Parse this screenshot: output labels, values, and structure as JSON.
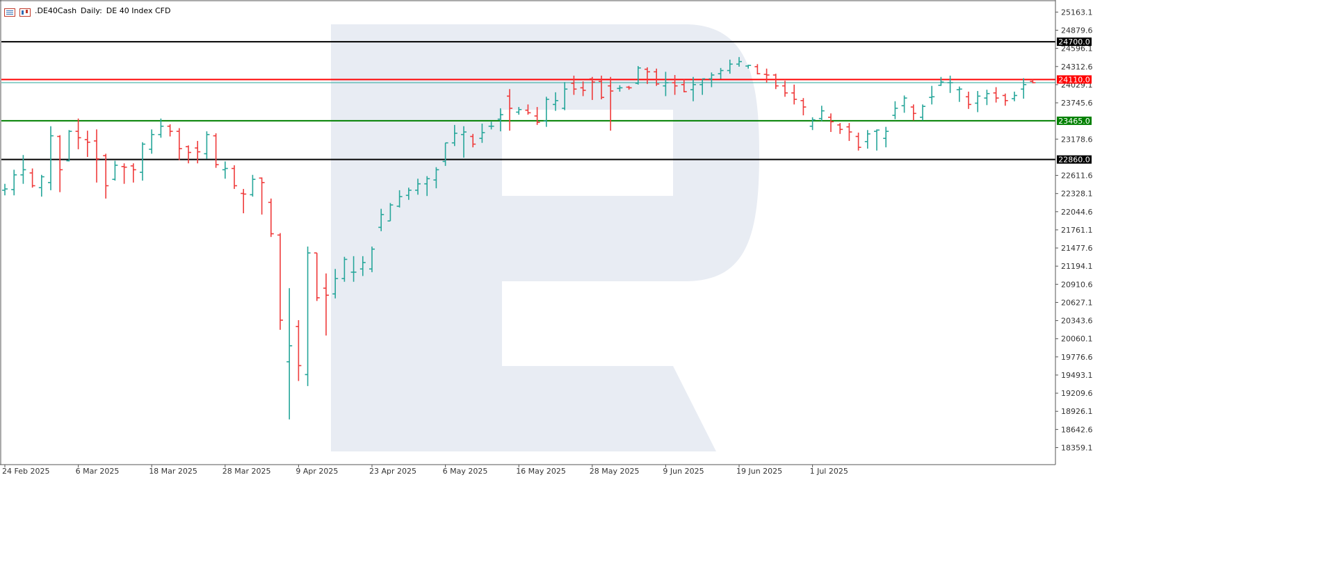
{
  "header": {
    "symbol": ".DE40Cash",
    "timeframe": "Daily:",
    "description": "DE 40 Index CFD"
  },
  "colors": {
    "bull": "#26a69a",
    "bear": "#ef3b3b",
    "axis": "#333333",
    "watermark": "#e8ecf3",
    "res_red": "#ff0000",
    "sup_green": "#008000",
    "black_line": "#000000",
    "current_line": "#26a69a"
  },
  "chart_data": {
    "type": "ohlc",
    "title": ".DE40Cash, Daily:  DE 40 Index CFD",
    "ylim": [
      18115.0,
      25330.0
    ],
    "y_ticks": [
      25163.1,
      24879.6,
      24596.1,
      24312.6,
      24029.1,
      23745.6,
      23178.6,
      22611.6,
      22328.1,
      22044.6,
      21761.1,
      21477.6,
      21194.1,
      20910.6,
      20627.1,
      20343.6,
      20060.1,
      19776.6,
      19493.1,
      19209.6,
      18926.1,
      18642.6,
      18359.1
    ],
    "y_tick_labels": [
      "25163.1",
      "24879.6",
      "24596.1",
      "24312.6",
      "24029.1",
      "23745.6",
      "23178.6",
      "22611.6",
      "22328.1",
      "22044.6",
      "21761.1",
      "21477.6",
      "21194.1",
      "20910.6",
      "20627.1",
      "20343.6",
      "20060.1",
      "19776.6",
      "19493.1",
      "19209.6",
      "18926.1",
      "18642.6",
      "18359.1"
    ],
    "x_labels": [
      {
        "bar": 0,
        "label": "24 Feb 2025"
      },
      {
        "bar": 8,
        "label": "6 Mar 2025"
      },
      {
        "bar": 16,
        "label": "18 Mar 2025"
      },
      {
        "bar": 24,
        "label": "28 Mar 2025"
      },
      {
        "bar": 32,
        "label": "9 Apr 2025"
      },
      {
        "bar": 40,
        "label": "23 Apr 2025"
      },
      {
        "bar": 48,
        "label": "6 May 2025"
      },
      {
        "bar": 56,
        "label": "16 May 2025"
      },
      {
        "bar": 64,
        "label": "28 May 2025"
      },
      {
        "bar": 72,
        "label": "9 Jun 2025"
      },
      {
        "bar": 80,
        "label": "19 Jun 2025"
      },
      {
        "bar": 88,
        "label": "1 Jul 2025"
      }
    ],
    "levels": [
      {
        "value": 24700.0,
        "label": "24700.0",
        "color": "#000000"
      },
      {
        "value": 24110.0,
        "label": "24110.0",
        "color": "#ff0000"
      },
      {
        "value": 23465.0,
        "label": "23465.0",
        "color": "#008000"
      },
      {
        "value": 22860.0,
        "label": "22860.0",
        "color": "#000000"
      }
    ],
    "current_price": 24060.0,
    "bars": [
      {
        "o": 22380,
        "h": 22480,
        "l": 22300,
        "c": 22400
      },
      {
        "o": 22390,
        "h": 22700,
        "l": 22300,
        "c": 22620
      },
      {
        "o": 22620,
        "h": 22930,
        "l": 22480,
        "c": 22700
      },
      {
        "o": 22650,
        "h": 22720,
        "l": 22420,
        "c": 22450
      },
      {
        "o": 22420,
        "h": 22620,
        "l": 22280,
        "c": 22590
      },
      {
        "o": 22500,
        "h": 23380,
        "l": 22380,
        "c": 23230
      },
      {
        "o": 23220,
        "h": 23240,
        "l": 22350,
        "c": 22700
      },
      {
        "o": 22840,
        "h": 23320,
        "l": 22830,
        "c": 23300
      },
      {
        "o": 23300,
        "h": 23500,
        "l": 23020,
        "c": 23200
      },
      {
        "o": 23170,
        "h": 23310,
        "l": 22900,
        "c": 23130
      },
      {
        "o": 23150,
        "h": 23330,
        "l": 22500,
        "c": 22870
      },
      {
        "o": 22920,
        "h": 22950,
        "l": 22250,
        "c": 22450
      },
      {
        "o": 22550,
        "h": 22840,
        "l": 22530,
        "c": 22770
      },
      {
        "o": 22750,
        "h": 22800,
        "l": 22480,
        "c": 22740
      },
      {
        "o": 22760,
        "h": 22800,
        "l": 22500,
        "c": 22700
      },
      {
        "o": 22660,
        "h": 23130,
        "l": 22530,
        "c": 23100
      },
      {
        "o": 23020,
        "h": 23330,
        "l": 22950,
        "c": 23250
      },
      {
        "o": 23250,
        "h": 23500,
        "l": 23200,
        "c": 23380
      },
      {
        "o": 23380,
        "h": 23410,
        "l": 23220,
        "c": 23300
      },
      {
        "o": 23300,
        "h": 23350,
        "l": 22850,
        "c": 23030
      },
      {
        "o": 23060,
        "h": 23080,
        "l": 22800,
        "c": 22970
      },
      {
        "o": 23040,
        "h": 23150,
        "l": 22800,
        "c": 22980
      },
      {
        "o": 22950,
        "h": 23300,
        "l": 22870,
        "c": 23250
      },
      {
        "o": 23230,
        "h": 23270,
        "l": 22730,
        "c": 22780
      },
      {
        "o": 22700,
        "h": 22830,
        "l": 22560,
        "c": 22720
      },
      {
        "o": 22720,
        "h": 22770,
        "l": 22400,
        "c": 22450
      },
      {
        "o": 22330,
        "h": 22400,
        "l": 22020,
        "c": 22320
      },
      {
        "o": 22310,
        "h": 22620,
        "l": 22280,
        "c": 22550
      },
      {
        "o": 22570,
        "h": 22580,
        "l": 22000,
        "c": 22500
      },
      {
        "o": 22190,
        "h": 22250,
        "l": 21650,
        "c": 21700
      },
      {
        "o": 21680,
        "h": 21710,
        "l": 20200,
        "c": 20350
      },
      {
        "o": 19700,
        "h": 20850,
        "l": 18800,
        "c": 19950
      },
      {
        "o": 20250,
        "h": 20350,
        "l": 19400,
        "c": 19640
      },
      {
        "o": 19500,
        "h": 21500,
        "l": 19320,
        "c": 21400
      },
      {
        "o": 21400,
        "h": 21400,
        "l": 20650,
        "c": 20700
      },
      {
        "o": 20850,
        "h": 21080,
        "l": 20110,
        "c": 20740
      },
      {
        "o": 20760,
        "h": 21150,
        "l": 20690,
        "c": 21000
      },
      {
        "o": 21000,
        "h": 21340,
        "l": 20950,
        "c": 21300
      },
      {
        "o": 21100,
        "h": 21350,
        "l": 20950,
        "c": 21100
      },
      {
        "o": 21150,
        "h": 21350,
        "l": 21040,
        "c": 21250
      },
      {
        "o": 21150,
        "h": 21500,
        "l": 21100,
        "c": 21460
      },
      {
        "o": 21800,
        "h": 22090,
        "l": 21740,
        "c": 22000
      },
      {
        "o": 21900,
        "h": 22180,
        "l": 21900,
        "c": 22150
      },
      {
        "o": 22130,
        "h": 22380,
        "l": 22110,
        "c": 22280
      },
      {
        "o": 22300,
        "h": 22420,
        "l": 22230,
        "c": 22380
      },
      {
        "o": 22380,
        "h": 22560,
        "l": 22310,
        "c": 22480
      },
      {
        "o": 22480,
        "h": 22600,
        "l": 22290,
        "c": 22560
      },
      {
        "o": 22540,
        "h": 22740,
        "l": 22410,
        "c": 22700
      },
      {
        "o": 22830,
        "h": 23120,
        "l": 22760,
        "c": 23120
      },
      {
        "o": 23120,
        "h": 23400,
        "l": 23070,
        "c": 23270
      },
      {
        "o": 23250,
        "h": 23380,
        "l": 22890,
        "c": 23290
      },
      {
        "o": 23220,
        "h": 23260,
        "l": 23050,
        "c": 23100
      },
      {
        "o": 23190,
        "h": 23420,
        "l": 23120,
        "c": 23280
      },
      {
        "o": 23380,
        "h": 23450,
        "l": 23330,
        "c": 23380
      },
      {
        "o": 23490,
        "h": 23660,
        "l": 23300,
        "c": 23560
      },
      {
        "o": 23850,
        "h": 23960,
        "l": 23310,
        "c": 23660
      },
      {
        "o": 23600,
        "h": 23680,
        "l": 23560,
        "c": 23640
      },
      {
        "o": 23630,
        "h": 23720,
        "l": 23560,
        "c": 23590
      },
      {
        "o": 23540,
        "h": 23680,
        "l": 23400,
        "c": 23440
      },
      {
        "o": 23460,
        "h": 23840,
        "l": 23370,
        "c": 23800
      },
      {
        "o": 23720,
        "h": 23910,
        "l": 23620,
        "c": 23780
      },
      {
        "o": 23660,
        "h": 24070,
        "l": 23630,
        "c": 23960
      },
      {
        "o": 24050,
        "h": 24170,
        "l": 23870,
        "c": 23960
      },
      {
        "o": 23980,
        "h": 24080,
        "l": 23850,
        "c": 23940
      },
      {
        "o": 24120,
        "h": 24150,
        "l": 23790,
        "c": 24070
      },
      {
        "o": 24080,
        "h": 24170,
        "l": 23800,
        "c": 23830
      },
      {
        "o": 24010,
        "h": 24150,
        "l": 23310,
        "c": 23930
      },
      {
        "o": 23970,
        "h": 24020,
        "l": 23920,
        "c": 23980
      },
      {
        "o": 23990,
        "h": 24010,
        "l": 23950,
        "c": 23980
      },
      {
        "o": 24050,
        "h": 24320,
        "l": 24030,
        "c": 24290
      },
      {
        "o": 24270,
        "h": 24300,
        "l": 24040,
        "c": 24230
      },
      {
        "o": 24230,
        "h": 24280,
        "l": 24010,
        "c": 24040
      },
      {
        "o": 24010,
        "h": 24230,
        "l": 23850,
        "c": 24060
      },
      {
        "o": 24060,
        "h": 24180,
        "l": 23870,
        "c": 24010
      },
      {
        "o": 24030,
        "h": 24110,
        "l": 23910,
        "c": 23920
      },
      {
        "o": 23950,
        "h": 24150,
        "l": 23770,
        "c": 24030
      },
      {
        "o": 24030,
        "h": 24110,
        "l": 23870,
        "c": 24120
      },
      {
        "o": 24120,
        "h": 24220,
        "l": 23990,
        "c": 24180
      },
      {
        "o": 24200,
        "h": 24290,
        "l": 24120,
        "c": 24250
      },
      {
        "o": 24250,
        "h": 24420,
        "l": 24200,
        "c": 24350
      },
      {
        "o": 24350,
        "h": 24460,
        "l": 24310,
        "c": 24390
      },
      {
        "o": 24320,
        "h": 24340,
        "l": 24280,
        "c": 24330
      },
      {
        "o": 24310,
        "h": 24350,
        "l": 24190,
        "c": 24200
      },
      {
        "o": 24190,
        "h": 24280,
        "l": 24060,
        "c": 24180
      },
      {
        "o": 24180,
        "h": 24200,
        "l": 23960,
        "c": 24010
      },
      {
        "o": 24010,
        "h": 24090,
        "l": 23840,
        "c": 23900
      },
      {
        "o": 23900,
        "h": 24030,
        "l": 23720,
        "c": 23800
      },
      {
        "o": 23780,
        "h": 23820,
        "l": 23550,
        "c": 23680
      },
      {
        "o": 23380,
        "h": 23520,
        "l": 23320,
        "c": 23480
      },
      {
        "o": 23500,
        "h": 23700,
        "l": 23460,
        "c": 23620
      },
      {
        "o": 23520,
        "h": 23580,
        "l": 23290,
        "c": 23450
      },
      {
        "o": 23400,
        "h": 23430,
        "l": 23260,
        "c": 23330
      },
      {
        "o": 23370,
        "h": 23430,
        "l": 23150,
        "c": 23290
      },
      {
        "o": 23220,
        "h": 23280,
        "l": 23000,
        "c": 23050
      },
      {
        "o": 23140,
        "h": 23320,
        "l": 23030,
        "c": 23260
      },
      {
        "o": 23300,
        "h": 23330,
        "l": 23000,
        "c": 23320
      },
      {
        "o": 23190,
        "h": 23370,
        "l": 23050,
        "c": 23300
      },
      {
        "o": 23550,
        "h": 23770,
        "l": 23490,
        "c": 23660
      },
      {
        "o": 23700,
        "h": 23860,
        "l": 23590,
        "c": 23820
      },
      {
        "o": 23680,
        "h": 23720,
        "l": 23470,
        "c": 23580
      },
      {
        "o": 23520,
        "h": 23720,
        "l": 23470,
        "c": 23690
      },
      {
        "o": 23830,
        "h": 24010,
        "l": 23720,
        "c": 23840
      },
      {
        "o": 24020,
        "h": 24150,
        "l": 24010,
        "c": 24070
      },
      {
        "o": 24060,
        "h": 24170,
        "l": 23900,
        "c": 24060
      },
      {
        "o": 23950,
        "h": 24000,
        "l": 23760,
        "c": 23960
      },
      {
        "o": 23840,
        "h": 23920,
        "l": 23650,
        "c": 23720
      },
      {
        "o": 23740,
        "h": 23930,
        "l": 23600,
        "c": 23850
      },
      {
        "o": 23820,
        "h": 23950,
        "l": 23710,
        "c": 23890
      },
      {
        "o": 23900,
        "h": 23990,
        "l": 23750,
        "c": 23820
      },
      {
        "o": 23860,
        "h": 23890,
        "l": 23700,
        "c": 23780
      },
      {
        "o": 23810,
        "h": 23920,
        "l": 23770,
        "c": 23860
      },
      {
        "o": 23960,
        "h": 24130,
        "l": 23810,
        "c": 24030
      },
      {
        "o": 24080,
        "h": 24110,
        "l": 24050,
        "c": 24060
      }
    ]
  }
}
